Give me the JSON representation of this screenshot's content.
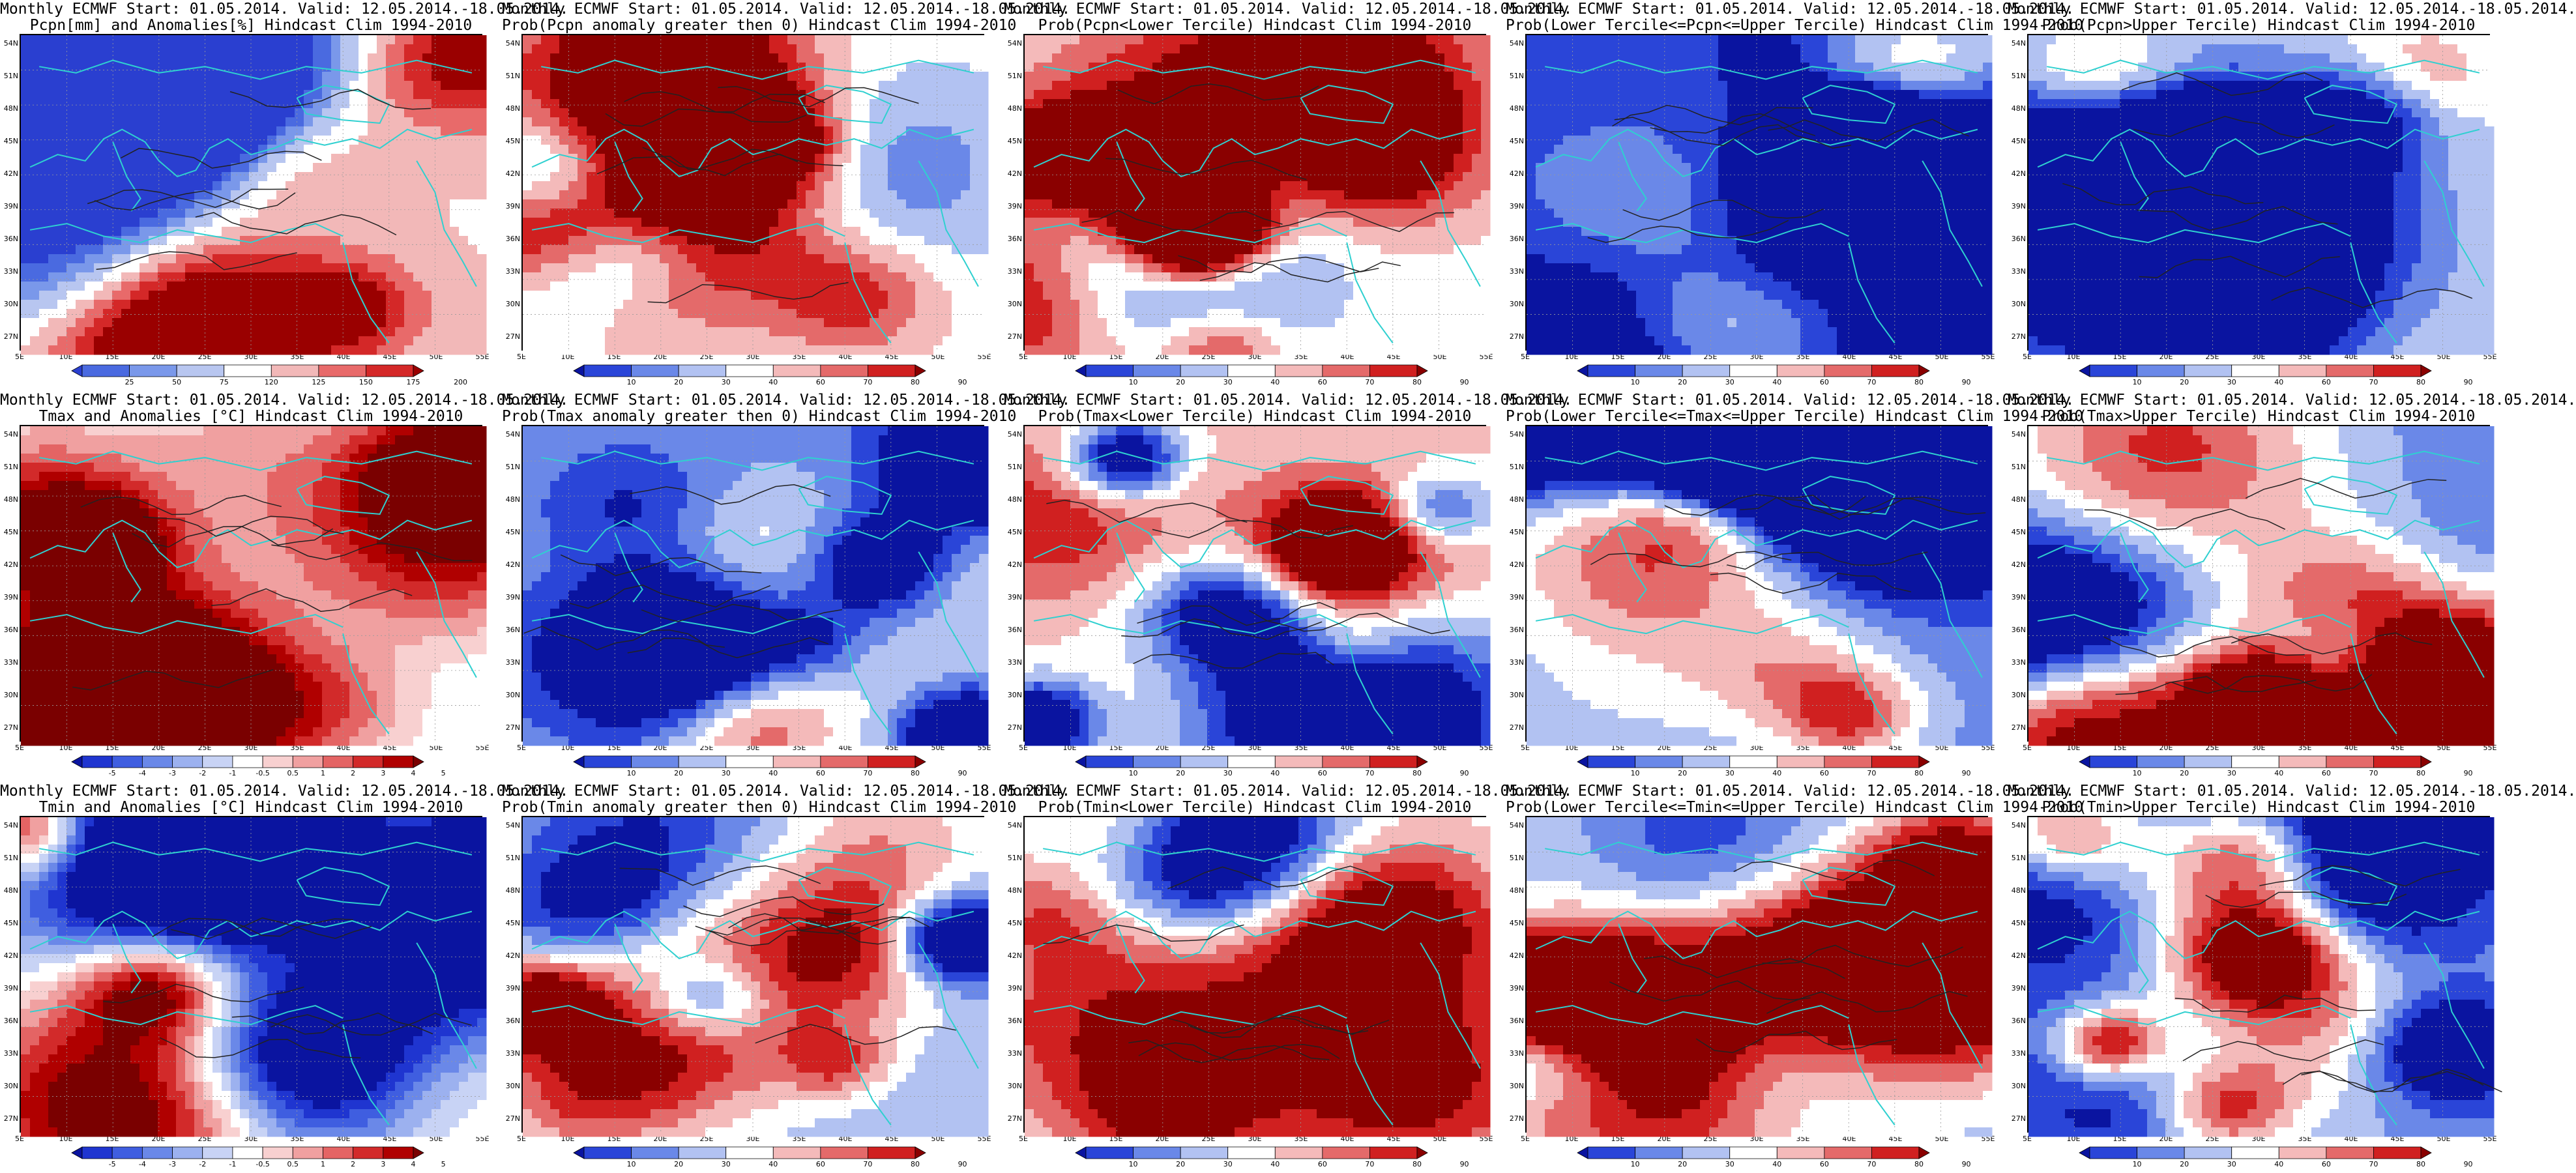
{
  "lon_ticks": [
    "5E",
    "10E",
    "15E",
    "20E",
    "25E",
    "30E",
    "35E",
    "40E",
    "45E",
    "50E",
    "55E"
  ],
  "lat_ticks": [
    "54N",
    "51N",
    "48N",
    "45N",
    "42N",
    "39N",
    "36N",
    "33N",
    "30N",
    "27N"
  ],
  "common_line1": "Monthly ECMWF Start: 01.05.2014. Valid: 12.05.2014.-18.05.2014.",
  "colorbars": {
    "pcpn_anom": {
      "labels": [
        "25",
        "50",
        "75",
        "120",
        "125",
        "150",
        "175",
        "200"
      ],
      "colors": [
        "#2a3fd0",
        "#4a6ae0",
        "#7a98ea",
        "#b8c6f0",
        "#ffffff",
        "#f2b8b8",
        "#e86a6a",
        "#d42828",
        "#9a0000"
      ]
    },
    "temp_anom": {
      "labels": [
        "-5",
        "-4",
        "-3",
        "-2",
        "-1",
        "-0.5",
        "0.5",
        "1",
        "2",
        "3",
        "4",
        "5"
      ],
      "colors": [
        "#0a14a0",
        "#1f35d0",
        "#3f5ee0",
        "#6a88e8",
        "#9cb1ef",
        "#c8d3f5",
        "#ffffff",
        "#f8d0d0",
        "#f0a0a0",
        "#e46464",
        "#d22a2a",
        "#b00000",
        "#7a0000"
      ]
    },
    "prob": {
      "labels": [
        "10",
        "20",
        "30",
        "40",
        "60",
        "70",
        "80",
        "90"
      ],
      "colors": [
        "#0a14a0",
        "#2a45d8",
        "#6a88e8",
        "#b2c2f2",
        "#ffffff",
        "#f4baba",
        "#e46a6a",
        "#d02020",
        "#8a0000"
      ]
    }
  },
  "panels": [
    {
      "line2": "Pcpn[mm] and Anomalies[%] Hindcast Clim 1994-2010",
      "cbar": "pcpn_anom",
      "palette": "pcpn",
      "seed": 11,
      "bias": 0.55
    },
    {
      "line2": "Prob(Pcpn anomaly greater then 0) Hindcast Clim 1994-2010",
      "cbar": "prob",
      "palette": "prob",
      "seed": 23,
      "bias": 0.5
    },
    {
      "line2": "Prob(Pcpn<Lower Tercile) Hindcast Clim 1994-2010",
      "cbar": "prob",
      "palette": "prob",
      "seed": 37,
      "bias": 0.52
    },
    {
      "line2": "Prob(Lower Tercile<=Pcpn<=Upper Tercile) Hindcast Clim 1994-2010",
      "cbar": "prob",
      "palette": "prob",
      "seed": 41,
      "bias": 0.18
    },
    {
      "line2": "Prob(Pcpn>Upper Tercile) Hindcast Clim 1994-2010",
      "cbar": "prob",
      "palette": "prob",
      "seed": 53,
      "bias": 0.45
    },
    {
      "line2": "Tmax and Anomalies [°C] Hindcast Clim 1994-2010",
      "cbar": "temp_anom",
      "palette": "temp",
      "seed": 61,
      "bias": 0.45
    },
    {
      "line2": "Prob(Tmax anomaly greater then 0) Hindcast Clim 1994-2010",
      "cbar": "prob",
      "palette": "prob",
      "seed": 71,
      "bias": 0.3
    },
    {
      "line2": "Prob(Tmax<Lower Tercile) Hindcast Clim 1994-2010",
      "cbar": "prob",
      "palette": "prob",
      "seed": 83,
      "bias": 0.55
    },
    {
      "line2": "Prob(Lower Tercile<=Tmax<=Upper Tercile) Hindcast Clim 1994-2010",
      "cbar": "prob",
      "palette": "prob",
      "seed": 97,
      "bias": 0.3
    },
    {
      "line2": "Prob(Tmax>Upper Tercile) Hindcast Clim 1994-2010",
      "cbar": "prob",
      "palette": "prob",
      "seed": 103,
      "bias": 0.25
    },
    {
      "line2": "Tmin and Anomalies [°C] Hindcast Clim 1994-2010",
      "cbar": "temp_anom",
      "palette": "temp",
      "seed": 113,
      "bias": 0.45
    },
    {
      "line2": "Prob(Tmin anomaly greater then 0) Hindcast Clim 1994-2010",
      "cbar": "prob",
      "palette": "prob",
      "seed": 127,
      "bias": 0.35
    },
    {
      "line2": "Prob(Tmin<Lower Tercile) Hindcast Clim 1994-2010",
      "cbar": "prob",
      "palette": "prob",
      "seed": 131,
      "bias": 0.5
    },
    {
      "line2": "Prob(Lower Tercile<=Tmin<=Upper Tercile) Hindcast Clim 1994-2010",
      "cbar": "prob",
      "palette": "prob",
      "seed": 139,
      "bias": 0.3
    },
    {
      "line2": "Prob(Tmin>Upper Tercile) Hindcast Clim 1994-2010",
      "cbar": "prob",
      "palette": "prob",
      "seed": 149,
      "bias": 0.3
    }
  ]
}
